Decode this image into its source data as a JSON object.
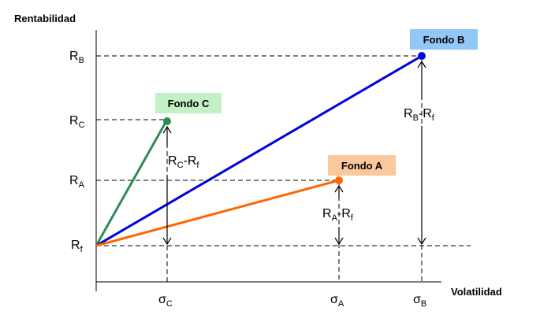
{
  "axes": {
    "y_title": "Rentabilidad",
    "x_title": "Volatilidad"
  },
  "y_labels": {
    "rb": {
      "main": "R",
      "sub": "B"
    },
    "rc": {
      "main": "R",
      "sub": "C"
    },
    "ra": {
      "main": "R",
      "sub": "A"
    },
    "rf": {
      "main": "R",
      "sub": "f"
    }
  },
  "x_labels": {
    "sc": {
      "main": "σ",
      "sub": "C"
    },
    "sa": {
      "main": "σ",
      "sub": "A"
    },
    "sb": {
      "main": "σ",
      "sub": "B"
    }
  },
  "funds": {
    "a": {
      "label": "Fondo A",
      "line_color": "#ff6600",
      "tag_color": "#fbc89e"
    },
    "b": {
      "label": "Fondo B",
      "line_color": "#0000dd",
      "tag_color": "#93c8f6"
    },
    "c": {
      "label": "Fondo C",
      "line_color": "#2e8b57",
      "tag_color": "#c4f0c6"
    }
  },
  "excess": {
    "c": {
      "r1": "R",
      "s1": "C",
      "mid": "-R",
      "s2": "f"
    },
    "a": {
      "r1": "R",
      "s1": "A",
      "mid": "-R",
      "s2": "f"
    },
    "b": {
      "r1": "R",
      "s1": "B",
      "mid": "-R",
      "s2": "f"
    }
  }
}
